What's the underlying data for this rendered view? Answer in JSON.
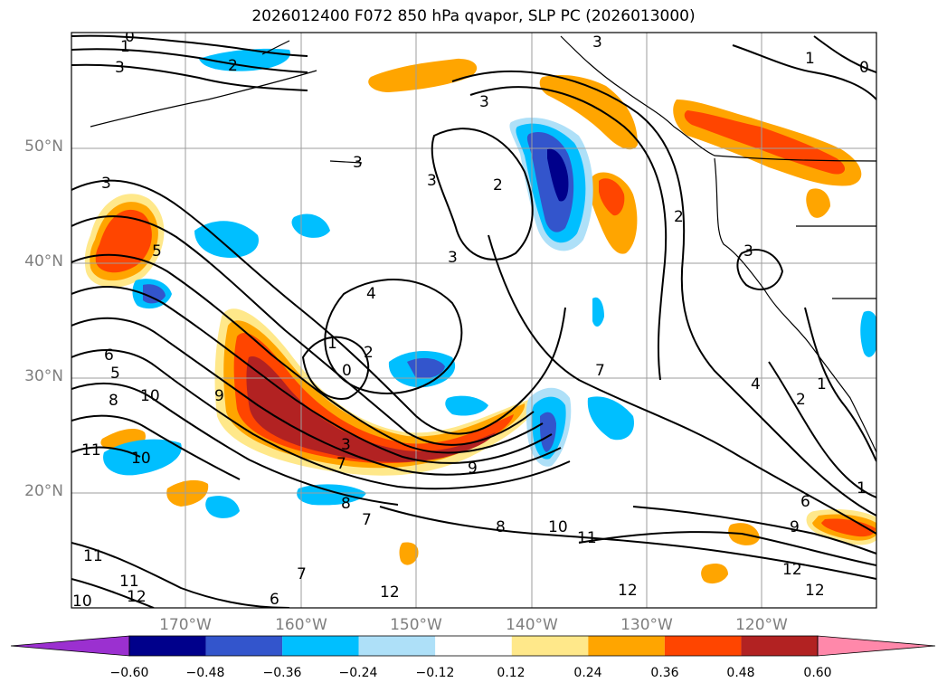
{
  "title": "2026012400 F072 850 hPa qvapor, SLP PC (2026013000)",
  "lat_labels": [
    "50°N",
    "40°N",
    "30°N",
    "20°N"
  ],
  "lon_labels": [
    "170°W",
    "160°W",
    "150°W",
    "140°W",
    "130°W",
    "120°W"
  ],
  "colorbar": {
    "ticks": [
      "−0.60",
      "−0.48",
      "−0.36",
      "−0.24",
      "−0.12",
      "0.12",
      "0.24",
      "0.36",
      "0.48",
      "0.60"
    ],
    "colors": [
      "#9b30d0",
      "#00008b",
      "#3355cc",
      "#00bfff",
      "#aee0f8",
      "#ffffff",
      "#ffe88a",
      "#ffa500",
      "#ff4500",
      "#b22222",
      "#ff88aa"
    ]
  },
  "contour_labels": [
    "0",
    "1",
    "2",
    "3",
    "4",
    "5",
    "6",
    "7",
    "8",
    "9",
    "10",
    "11",
    "12"
  ]
}
